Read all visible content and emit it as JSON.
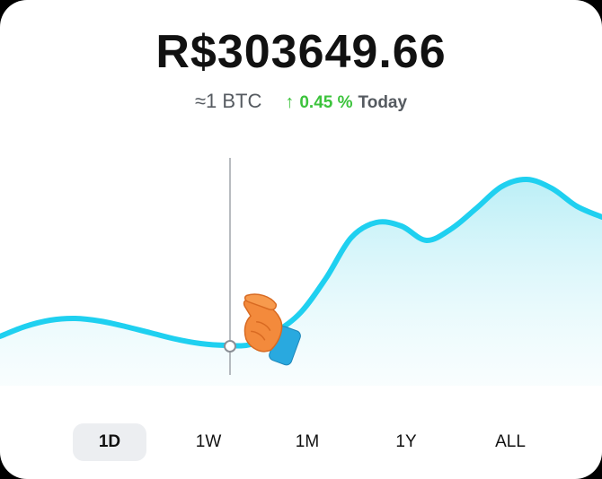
{
  "header": {
    "price": "R$303649.66",
    "btc_amount": "≈1 BTC",
    "change_arrow": "↑",
    "change_value": "0.45 %",
    "change_period": "Today"
  },
  "colors": {
    "line": "#1fd0f0",
    "positive": "#3cc33c",
    "active_tab_bg": "#eceef1"
  },
  "chart_data": {
    "type": "area",
    "title": "",
    "xlabel": "",
    "ylabel": "",
    "series": [
      {
        "values": [
          35,
          46,
          53,
          55,
          52,
          46,
          39,
          32,
          27,
          25,
          26,
          40,
          62,
          100,
          145,
          162,
          158,
          142,
          155,
          178,
          202,
          210,
          200,
          180,
          168
        ]
      }
    ],
    "ylim": [
      0,
      240
    ],
    "grid": false,
    "legend": "none",
    "cursor_index": 9
  },
  "time_ranges": [
    {
      "label": "1D",
      "active": true
    },
    {
      "label": "1W",
      "active": false
    },
    {
      "label": "1M",
      "active": false
    },
    {
      "label": "1Y",
      "active": false
    },
    {
      "label": "ALL",
      "active": false
    }
  ]
}
